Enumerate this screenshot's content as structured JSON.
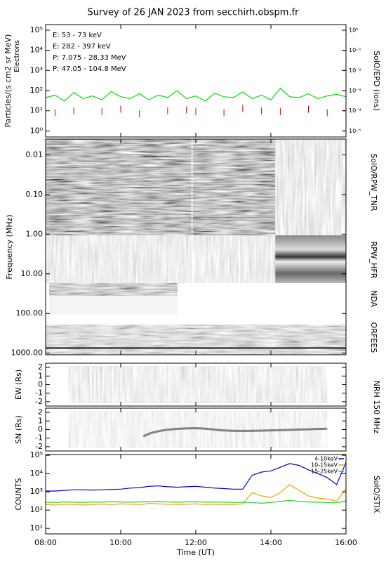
{
  "chart_data": [
    {
      "type": "line",
      "title": "Survey of 26 JAN 2023 from secchirh.obspm.fr",
      "ylabel": "Particles/(s cm2 sr MeV)",
      "ylabel2": "Electrons",
      "y2label": "SolO/EPD (ions)",
      "log": true,
      "ylim": [
        0.5,
        190000
      ],
      "yticks": [
        {
          "value": 1,
          "label": "10⁰"
        },
        {
          "value": 10,
          "label": "10¹"
        },
        {
          "value": 100,
          "label": "10²"
        },
        {
          "value": 1000,
          "label": "10³"
        },
        {
          "value": 10000,
          "label": "10⁴"
        },
        {
          "value": 100000,
          "label": "10⁵"
        }
      ],
      "y2lim": [
        5e-06,
        1.9
      ],
      "y2ticks": [
        {
          "value": 1e-05,
          "label": "10⁻⁵"
        },
        {
          "value": 0.0001,
          "label": "10⁻⁴"
        },
        {
          "value": 0.001,
          "label": "10⁻³"
        },
        {
          "value": 0.01,
          "label": "10⁻²"
        },
        {
          "value": 0.1,
          "label": "10⁻¹"
        },
        {
          "value": 1,
          "label": "10⁰"
        }
      ],
      "x": [
        8,
        8.25,
        8.5,
        8.75,
        9,
        9.25,
        9.5,
        9.75,
        10,
        10.25,
        10.5,
        10.75,
        11,
        11.25,
        11.5,
        11.75,
        12,
        12.25,
        12.5,
        12.75,
        13,
        13.25,
        13.5,
        13.75,
        14,
        14.25,
        14.5,
        14.75,
        15,
        15.25,
        15.5,
        15.75,
        16
      ],
      "series": [
        {
          "name": "E: 53 - 73 keV",
          "color": "#00dd00",
          "values": [
            45,
            60,
            30,
            80,
            40,
            55,
            35,
            90,
            50,
            40,
            70,
            35,
            60,
            45,
            100,
            40,
            55,
            30,
            75,
            50,
            45,
            85,
            40,
            60,
            35,
            130,
            50,
            45,
            70,
            40,
            55,
            65,
            50
          ]
        },
        {
          "name": "E: 282 - 397 keV",
          "color": "#cc0000",
          "type": "scatter",
          "values": [
            null,
            8,
            null,
            10,
            null,
            null,
            9,
            null,
            12,
            null,
            7,
            null,
            null,
            10,
            null,
            11,
            9,
            null,
            null,
            8,
            null,
            13,
            null,
            10,
            null,
            9,
            null,
            null,
            12,
            null,
            8,
            null,
            null
          ]
        },
        {
          "name": "P: 7.075 - 28.33 MeV",
          "color": "#000000",
          "axis": "y2",
          "values": [
            null,
            null,
            null,
            null,
            null,
            null,
            null,
            null,
            null,
            null,
            null,
            null,
            null,
            null,
            null,
            null,
            null,
            null,
            null,
            null,
            null,
            null,
            null,
            null,
            null,
            null,
            null,
            null,
            null,
            null,
            null,
            null,
            null
          ]
        },
        {
          "name": "P: 47.05 - 104.8 MeV",
          "color": "#0000cc",
          "axis": "y2",
          "values": [
            null,
            null,
            null,
            null,
            null,
            null,
            null,
            null,
            null,
            null,
            null,
            null,
            null,
            null,
            null,
            null,
            null,
            null,
            null,
            null,
            null,
            null,
            null,
            null,
            null,
            null,
            null,
            null,
            null,
            null,
            null,
            null,
            null
          ]
        }
      ]
    },
    {
      "type": "spectrogram",
      "ylabel": "Frequency (MHz)",
      "log": true,
      "yinvert": true,
      "ylim": [
        0.004,
        1100
      ],
      "yticks": [
        {
          "value": 0.01,
          "label": "0.01"
        },
        {
          "value": 0.1,
          "label": "0.10"
        },
        {
          "value": 1,
          "label": "1.00"
        },
        {
          "value": 10,
          "label": "10.00"
        },
        {
          "value": 100,
          "label": "100.00"
        },
        {
          "value": 1000,
          "label": "1000.00"
        }
      ],
      "instruments": [
        "SolO/RPW_TNR",
        "RPW_HFR",
        "NDA",
        "ORFEES"
      ]
    },
    {
      "type": "image",
      "ylabel": "EW (Rs)",
      "y2label": "NRH 150 MHz",
      "ylim": [
        -2.5,
        2.5
      ],
      "yticks": [
        -2,
        -1,
        0,
        1,
        2
      ]
    },
    {
      "type": "image",
      "ylabel": "SN (Rs)",
      "ylim": [
        -2.5,
        2.5
      ],
      "yticks": [
        -2,
        -1,
        0,
        1,
        2
      ]
    },
    {
      "type": "line",
      "ylabel": "COUNTS",
      "y2label": "SolO/STIX",
      "xlabel": "Time (UT)",
      "log": true,
      "ylim": [
        5,
        110000
      ],
      "yticks": [
        {
          "value": 10,
          "label": "10¹"
        },
        {
          "value": 100,
          "label": "10²"
        },
        {
          "value": 1000,
          "label": "10³"
        },
        {
          "value": 10000,
          "label": "10⁴"
        },
        {
          "value": 100000,
          "label": "10⁵"
        }
      ],
      "xlim": [
        8,
        16
      ],
      "xticks": [
        {
          "value": 8,
          "label": "08:00"
        },
        {
          "value": 10,
          "label": "10:00"
        },
        {
          "value": 12,
          "label": "12:00"
        },
        {
          "value": 14,
          "label": "14:00"
        },
        {
          "value": 16,
          "label": "16:00"
        }
      ],
      "legend": "upper right",
      "x": [
        8,
        8.25,
        8.5,
        8.75,
        9,
        9.25,
        9.5,
        9.75,
        10,
        10.25,
        10.5,
        10.75,
        11,
        11.25,
        11.5,
        11.75,
        12,
        12.25,
        12.5,
        12.75,
        13,
        13.25,
        13.5,
        13.75,
        14,
        14.25,
        14.5,
        14.75,
        15,
        15.25,
        15.5,
        15.75,
        16
      ],
      "series": [
        {
          "name": "4-10keV",
          "color": "#0000cc",
          "values": [
            1100,
            1100,
            1200,
            1300,
            1300,
            1250,
            1300,
            1350,
            1400,
            1600,
            1700,
            2000,
            2100,
            1900,
            1800,
            1900,
            2000,
            1800,
            1600,
            1500,
            1400,
            1400,
            8000,
            12000,
            14000,
            22000,
            35000,
            28000,
            16000,
            10000,
            6000,
            2500,
            40000
          ]
        },
        {
          "name": "10-15keV",
          "color": "#f0a000",
          "values": [
            200,
            190,
            210,
            200,
            190,
            200,
            210,
            200,
            220,
            210,
            200,
            230,
            220,
            210,
            200,
            210,
            220,
            200,
            210,
            200,
            200,
            220,
            900,
            600,
            500,
            900,
            2500,
            1200,
            600,
            450,
            400,
            300,
            1500
          ]
        },
        {
          "name": "15-25keV",
          "color": "#22cc22",
          "values": [
            270,
            260,
            280,
            270,
            260,
            280,
            270,
            290,
            280,
            270,
            280,
            290,
            300,
            280,
            270,
            280,
            290,
            270,
            280,
            270,
            260,
            270,
            260,
            240,
            260,
            300,
            340,
            300,
            280,
            270,
            260,
            250,
            320
          ]
        }
      ]
    }
  ]
}
